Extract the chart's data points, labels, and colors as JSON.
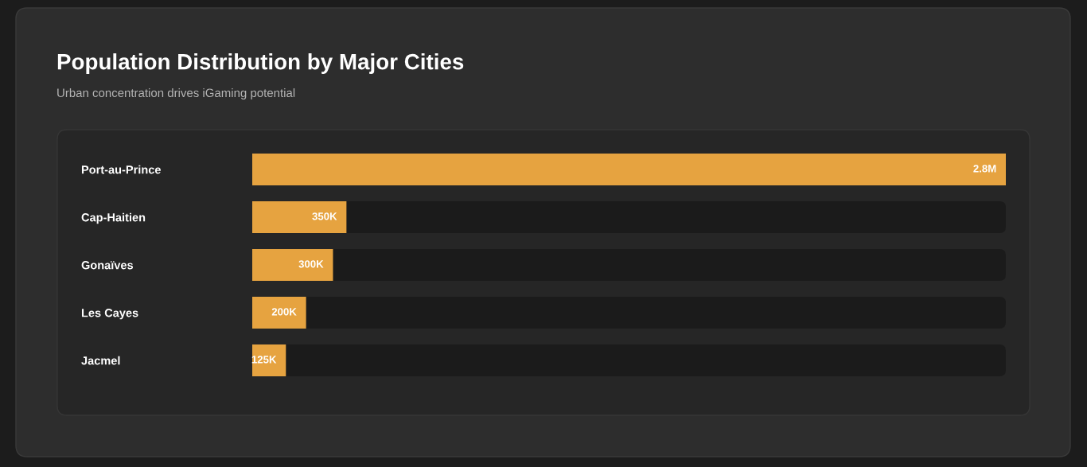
{
  "chart_data": {
    "type": "bar",
    "orientation": "horizontal",
    "title": "Population Distribution by Major Cities",
    "subtitle": "Urban concentration drives iGaming potential",
    "categories": [
      "Port-au-Prince",
      "Cap-Haitien",
      "Gonaïves",
      "Les Cayes",
      "Jacmel"
    ],
    "values": [
      2800000,
      350000,
      300000,
      200000,
      125000
    ],
    "value_labels": [
      "2.8M",
      "350K",
      "300K",
      "200K",
      "125K"
    ],
    "color": "#e6a340",
    "xlim": [
      0,
      2800000
    ],
    "tick_labels": "y"
  }
}
